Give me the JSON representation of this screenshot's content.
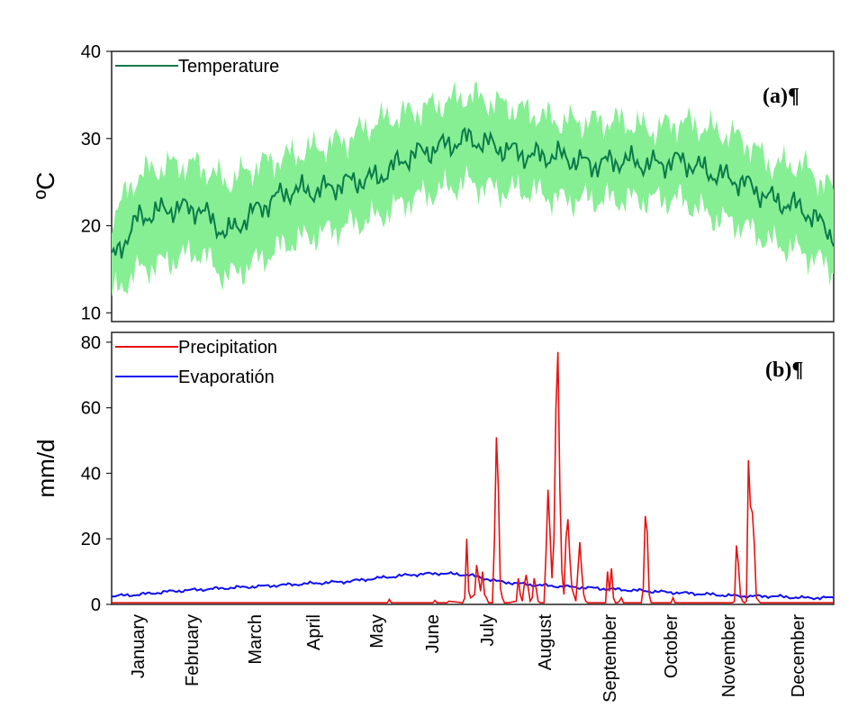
{
  "chart_data": [
    {
      "type": "area",
      "panel_label": "(a)¶",
      "ylabel": "ºC",
      "ylim": [
        9,
        40
      ],
      "yticks": [
        10,
        20,
        30,
        40
      ],
      "legend": [
        "Temperature"
      ],
      "legend_position": "top-left",
      "x_domain": [
        1,
        365
      ],
      "colors": {
        "line": "#0a7a4a",
        "band": "#86ef94"
      },
      "series": [
        {
          "name": "Temperature",
          "x": [
            1,
            15,
            31,
            45,
            59,
            75,
            90,
            105,
            120,
            135,
            151,
            166,
            181,
            196,
            212,
            227,
            243,
            258,
            273,
            288,
            304,
            319,
            334,
            349,
            365
          ],
          "values": [
            16,
            21,
            22,
            22,
            19,
            22,
            24,
            24,
            25,
            25.5,
            28,
            29,
            30,
            29,
            28,
            28,
            27,
            27.5,
            27,
            27.5,
            26,
            25,
            23,
            22,
            19
          ]
        },
        {
          "name": "Upper band",
          "x": [
            1,
            15,
            31,
            45,
            59,
            75,
            90,
            105,
            120,
            135,
            151,
            166,
            181,
            196,
            212,
            227,
            243,
            258,
            273,
            288,
            304,
            319,
            334,
            349,
            365
          ],
          "values": [
            21,
            26,
            27,
            27,
            25,
            27,
            28,
            29,
            30,
            32,
            33,
            34,
            35,
            34,
            33,
            32,
            32,
            32,
            31,
            32,
            31,
            30,
            27,
            27,
            24
          ]
        },
        {
          "name": "Lower band",
          "x": [
            1,
            15,
            31,
            45,
            59,
            75,
            90,
            105,
            120,
            135,
            151,
            166,
            181,
            196,
            212,
            227,
            243,
            258,
            273,
            288,
            304,
            319,
            334,
            349,
            365
          ],
          "values": [
            12,
            15,
            16,
            17,
            14,
            16,
            18,
            19,
            20,
            21,
            23,
            24,
            25,
            24,
            24,
            23,
            23,
            23,
            23,
            23,
            21,
            20,
            18,
            17,
            15
          ]
        }
      ]
    },
    {
      "type": "line",
      "panel_label": "(b)¶",
      "ylabel": "mm/d",
      "ylim": [
        0,
        83
      ],
      "yticks": [
        0,
        20,
        40,
        60,
        80
      ],
      "legend": [
        "Precipitation",
        "Evaporatión"
      ],
      "legend_position": "top-left",
      "x_domain": [
        1,
        365
      ],
      "colors": {
        "precipitation": "#e81010",
        "evaporation": "#1010f0"
      },
      "categories": [
        "January",
        "February",
        "March",
        "April",
        "May",
        "June",
        "July",
        "August",
        "September",
        "October",
        "November",
        "December"
      ],
      "series": [
        {
          "name": "Precipitation",
          "x": [
            1,
            140,
            141,
            142,
            150,
            163,
            164,
            165,
            170,
            171,
            178,
            179,
            180,
            181,
            182,
            184,
            185,
            186,
            187,
            188,
            189,
            190,
            191,
            193,
            194,
            195,
            196,
            197,
            198,
            199,
            200,
            201,
            205,
            206,
            207,
            208,
            209,
            210,
            211,
            212,
            213,
            214,
            215,
            216,
            217,
            219,
            220,
            221,
            222,
            223,
            224,
            225,
            226,
            227,
            228,
            229,
            230,
            231,
            232,
            233,
            234,
            235,
            236,
            237,
            238,
            239,
            240,
            241,
            242,
            243,
            250,
            251,
            252,
            253,
            254,
            255,
            256,
            257,
            258,
            259,
            268,
            269,
            270,
            271,
            272,
            273,
            282,
            283,
            284,
            285,
            290,
            314,
            315,
            316,
            317,
            318,
            319,
            320,
            321,
            322,
            323,
            324,
            325,
            326,
            328,
            365
          ],
          "values": [
            0.5,
            0.5,
            1.5,
            0.5,
            0.5,
            0.5,
            1.2,
            0.5,
            0.5,
            1,
            0.5,
            2,
            20,
            4,
            2,
            3,
            12,
            8,
            4,
            10,
            3,
            2,
            0.5,
            0.5,
            20,
            51,
            35,
            5,
            2,
            0.5,
            0.5,
            0.5,
            1,
            8,
            3,
            1,
            6,
            9,
            5,
            1,
            2,
            8,
            5,
            1,
            0.5,
            0.5,
            16,
            35,
            22,
            8,
            20,
            60,
            77,
            35,
            10,
            3,
            20,
            26,
            14,
            5,
            3,
            1,
            10,
            19,
            10,
            3,
            1,
            0.5,
            0.5,
            0.5,
            0.5,
            10,
            4,
            11,
            2,
            0.5,
            0.5,
            1,
            2,
            0.5,
            0.5,
            5,
            27,
            22,
            3,
            0.5,
            0.5,
            0.5,
            2,
            0.5,
            0.5,
            0.5,
            1,
            18,
            12,
            3,
            1,
            0.5,
            1,
            44,
            30,
            28,
            18,
            2,
            0.5,
            0.5
          ]
        },
        {
          "name": "Evaporatión",
          "x": [
            1,
            15,
            31,
            45,
            59,
            75,
            90,
            105,
            120,
            135,
            151,
            166,
            181,
            196,
            212,
            227,
            243,
            258,
            273,
            288,
            304,
            319,
            334,
            349,
            365
          ],
          "values": [
            2.5,
            3,
            4,
            4.5,
            5,
            5.5,
            6,
            6.5,
            7,
            8,
            9,
            9.5,
            9,
            7,
            6,
            5.5,
            5,
            4.5,
            4,
            3.5,
            3,
            2.5,
            2.5,
            2,
            2
          ]
        }
      ]
    }
  ]
}
